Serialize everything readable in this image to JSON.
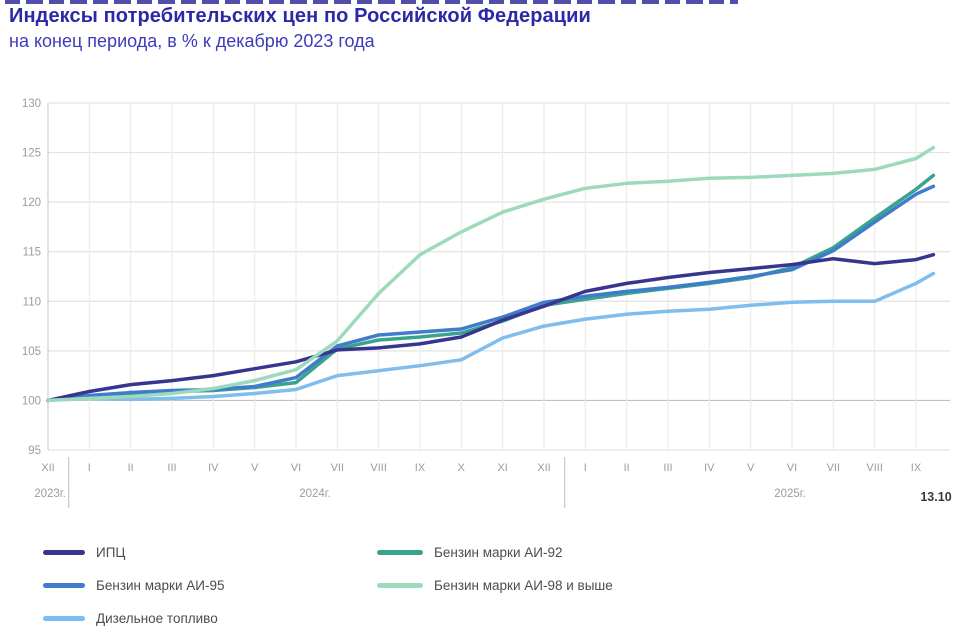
{
  "chart_data": {
    "type": "line",
    "title": "Индексы потребительских цен по Российской Федерации",
    "subtitle": "на конец периода, в % к декабрю 2023 года",
    "x_labels": [
      "XII",
      "I",
      "II",
      "III",
      "IV",
      "V",
      "VI",
      "VII",
      "VIII",
      "IX",
      "X",
      "XI",
      "XII",
      "I",
      "II",
      "III",
      "IV",
      "V",
      "VI",
      "VII",
      "VIII",
      "IX"
    ],
    "years": [
      "2023г.",
      "2024г.",
      "2025г."
    ],
    "end_date_label": "13.10",
    "y_ticks": [
      95,
      100,
      105,
      110,
      115,
      120,
      125,
      130
    ],
    "ylim": [
      95,
      130
    ],
    "grid": true,
    "legend_position": "bottom",
    "end_index": 21.42,
    "series": [
      {
        "name": "ИПЦ",
        "color": "#38358f",
        "values": [
          100,
          100.9,
          101.6,
          102.0,
          102.5,
          103.2,
          103.9,
          105.1,
          105.3,
          105.7,
          106.4,
          108.1,
          109.5,
          111.0,
          111.8,
          112.4,
          112.9,
          113.3,
          113.7,
          114.3,
          113.8,
          114.2,
          114.7
        ]
      },
      {
        "name": "Бензин марки АИ-92",
        "color": "#3aa38e",
        "values": [
          100,
          100.4,
          100.7,
          100.9,
          101.0,
          101.3,
          101.8,
          105.2,
          106.1,
          106.4,
          106.8,
          108.0,
          109.6,
          110.2,
          110.8,
          111.3,
          111.8,
          112.4,
          113.4,
          115.4,
          118.4,
          121.3,
          122.7
        ]
      },
      {
        "name": "Бензин марки АИ-95",
        "color": "#3f7dca",
        "values": [
          100,
          100.5,
          100.8,
          101.0,
          101.1,
          101.4,
          102.3,
          105.5,
          106.6,
          106.9,
          107.2,
          108.4,
          109.9,
          110.5,
          111.0,
          111.4,
          111.9,
          112.5,
          113.2,
          115.1,
          118.0,
          120.8,
          121.6
        ]
      },
      {
        "name": "Бензин марки АИ-98 и выше",
        "color": "#9cdabb",
        "values": [
          100,
          100.2,
          100.4,
          100.7,
          101.2,
          102.0,
          103.1,
          106.0,
          110.8,
          114.7,
          117.0,
          119.0,
          120.3,
          121.4,
          121.9,
          122.1,
          122.4,
          122.5,
          122.7,
          122.9,
          123.3,
          124.4,
          125.5
        ]
      },
      {
        "name": "Дизельное топливо",
        "color": "#7fbdee",
        "values": [
          100,
          100.2,
          100.1,
          100.2,
          100.4,
          100.7,
          101.1,
          102.5,
          103.0,
          103.5,
          104.1,
          106.3,
          107.5,
          108.2,
          108.7,
          109.0,
          109.2,
          109.6,
          109.9,
          110.0,
          110.0,
          111.8,
          112.8
        ]
      }
    ],
    "draw_order": [
      4,
      1,
      2,
      0,
      3
    ],
    "legend_columns": [
      [
        0,
        2,
        4
      ],
      [
        1,
        3
      ]
    ]
  }
}
